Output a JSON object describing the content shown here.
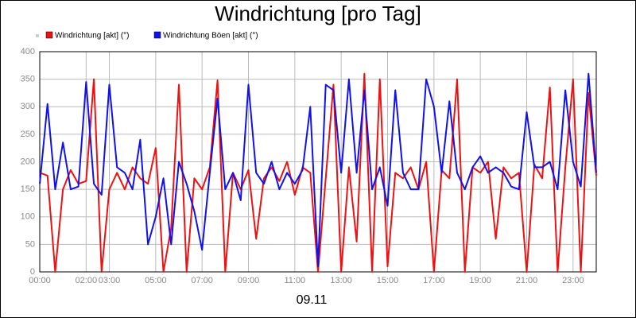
{
  "chart_data": {
    "type": "line",
    "title": "Windrichtung [pro Tag]",
    "x_label": "09.11",
    "x": [
      0,
      20,
      40,
      60,
      80,
      100,
      120,
      140,
      160,
      180,
      200,
      220,
      240,
      260,
      280,
      300,
      320,
      340,
      360,
      380,
      400,
      420,
      440,
      460,
      480,
      500,
      520,
      540,
      560,
      580,
      600,
      620,
      640,
      660,
      680,
      700,
      720,
      740,
      760,
      780,
      800,
      820,
      840,
      860,
      880,
      900,
      920,
      940,
      960,
      980,
      1000,
      1020,
      1040,
      1060,
      1080,
      1100,
      1120,
      1140,
      1160,
      1180,
      1200,
      1220,
      1240,
      1260,
      1280,
      1300,
      1320,
      1340,
      1360,
      1380,
      1400,
      1420,
      1440
    ],
    "xlim": [
      0,
      1440
    ],
    "xticks": [
      {
        "value": 0,
        "label": "00:00"
      },
      {
        "value": 120,
        "label": "02:00"
      },
      {
        "value": 180,
        "label": "03:00"
      },
      {
        "value": 300,
        "label": "05:00"
      },
      {
        "value": 420,
        "label": "07:00"
      },
      {
        "value": 540,
        "label": "09:00"
      },
      {
        "value": 660,
        "label": "11:00"
      },
      {
        "value": 780,
        "label": "13:00"
      },
      {
        "value": 900,
        "label": "15:00"
      },
      {
        "value": 1020,
        "label": "17:00"
      },
      {
        "value": 1140,
        "label": "19:00"
      },
      {
        "value": 1260,
        "label": "21:00"
      },
      {
        "value": 1380,
        "label": "23:00"
      }
    ],
    "ylim": [
      0,
      400
    ],
    "yticks": [
      0,
      50,
      100,
      150,
      200,
      250,
      300,
      350,
      400
    ],
    "grid": true,
    "series": [
      {
        "name": "Windrichtung [akt] (°)",
        "color": "#ee1111",
        "values": [
          180,
          175,
          0,
          150,
          185,
          160,
          165,
          350,
          0,
          150,
          180,
          150,
          190,
          170,
          160,
          225,
          0,
          80,
          340,
          0,
          170,
          150,
          190,
          348,
          0,
          180,
          150,
          185,
          60,
          170,
          190,
          165,
          200,
          140,
          190,
          180,
          0,
          170,
          340,
          0,
          190,
          55,
          360,
          0,
          350,
          10,
          180,
          170,
          190,
          150,
          200,
          0,
          185,
          170,
          350,
          0,
          190,
          180,
          200,
          60,
          190,
          170,
          180,
          0,
          195,
          170,
          335,
          0,
          190,
          350,
          0,
          325,
          175
        ]
      },
      {
        "name": "Windrichtung Böen [akt] (°)",
        "color": "#1111ee",
        "values": [
          160,
          305,
          150,
          235,
          150,
          155,
          345,
          160,
          140,
          340,
          190,
          180,
          150,
          240,
          50,
          100,
          170,
          50,
          200,
          160,
          110,
          40,
          180,
          315,
          150,
          180,
          130,
          340,
          180,
          160,
          200,
          150,
          180,
          160,
          185,
          300,
          10,
          340,
          330,
          180,
          350,
          180,
          330,
          150,
          190,
          120,
          330,
          180,
          150,
          150,
          350,
          300,
          180,
          310,
          180,
          150,
          190,
          210,
          180,
          190,
          180,
          155,
          150,
          290,
          190,
          190,
          200,
          150,
          330,
          200,
          155,
          360,
          180
        ]
      }
    ]
  }
}
